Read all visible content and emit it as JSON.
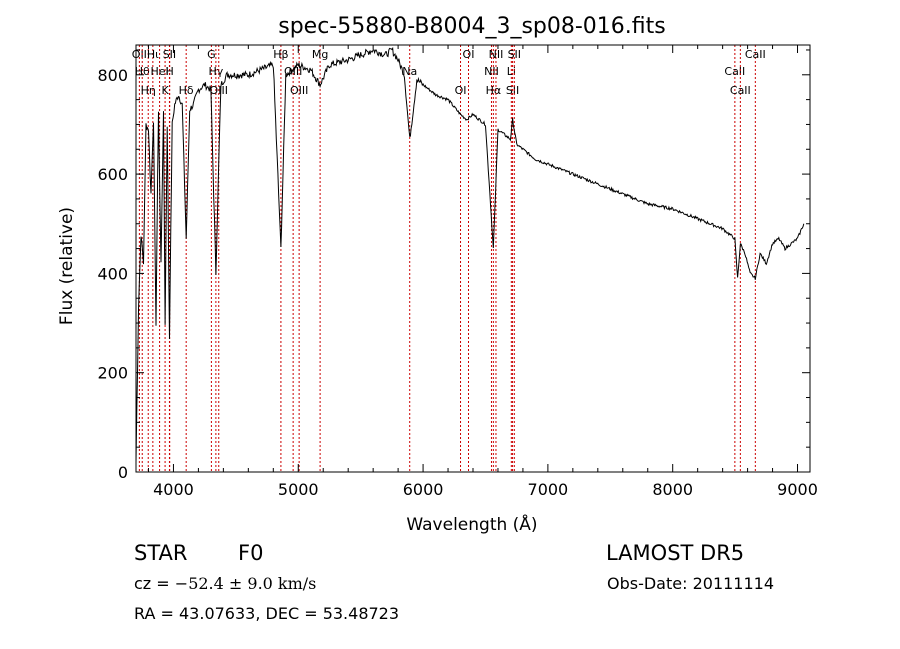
{
  "chart_data": {
    "type": "line",
    "title": "spec-55880-B8004_3_sp08-016.fits",
    "xlabel": "Wavelength (Å)",
    "ylabel": "Flux (relative)",
    "xlim": [
      3700,
      9100
    ],
    "ylim": [
      0,
      860
    ],
    "x_ticks": [
      4000,
      5000,
      6000,
      7000,
      8000,
      9000
    ],
    "y_ticks": [
      0,
      200,
      400,
      600,
      800
    ],
    "x_tick_labels": [
      "4000",
      "5000",
      "6000",
      "7000",
      "8000",
      "9000"
    ],
    "y_tick_labels": [
      "0",
      "200",
      "400",
      "600",
      "800"
    ],
    "grid": false,
    "series": [
      {
        "x": [
          3700,
          3720,
          3740,
          3760,
          3780,
          3800,
          3820,
          3840,
          3860,
          3880,
          3900,
          3920,
          3933,
          3950,
          3968,
          3990,
          4010,
          4040,
          4070,
          4102,
          4130,
          4160,
          4200,
          4250,
          4300,
          4340,
          4380,
          4430,
          4500,
          4600,
          4700,
          4800,
          4861,
          4900,
          5000,
          5100,
          5175,
          5250,
          5400,
          5500,
          5600,
          5700,
          5750,
          5800,
          5850,
          5893,
          5950,
          6000,
          6100,
          6200,
          6300,
          6350,
          6400,
          6500,
          6563,
          6600,
          6700,
          6717,
          6750,
          6800,
          6900,
          7000,
          7200,
          7400,
          7600,
          7800,
          8000,
          8200,
          8400,
          8498,
          8520,
          8542,
          8580,
          8620,
          8662,
          8700,
          8750,
          8800,
          8850,
          8900,
          8950,
          9000,
          9050
        ],
        "values": [
          20,
          330,
          480,
          420,
          700,
          690,
          560,
          710,
          300,
          730,
          420,
          720,
          300,
          700,
          270,
          700,
          740,
          760,
          740,
          470,
          730,
          740,
          770,
          780,
          770,
          400,
          780,
          800,
          800,
          800,
          810,
          820,
          450,
          800,
          820,
          810,
          780,
          820,
          830,
          840,
          850,
          840,
          850,
          830,
          800,
          670,
          790,
          780,
          760,
          750,
          720,
          710,
          720,
          700,
          450,
          690,
          670,
          710,
          660,
          650,
          630,
          620,
          600,
          580,
          560,
          540,
          530,
          510,
          490,
          470,
          390,
          460,
          440,
          400,
          390,
          440,
          420,
          460,
          470,
          450,
          460,
          470,
          500
        ]
      }
    ],
    "lines": [
      {
        "x": 3727,
        "label": "OII"
      },
      {
        "x": 3750,
        "label": "Hθ"
      },
      {
        "x": 3798,
        "label": "Hη"
      },
      {
        "x": 3835,
        "label": "Hι"
      },
      {
        "x": 3889,
        "label": "HeI"
      },
      {
        "x": 3933,
        "label": "K"
      },
      {
        "x": 3968,
        "label": "SII"
      },
      {
        "x": 3970,
        "label": "H"
      },
      {
        "x": 4102,
        "label": "Hδ"
      },
      {
        "x": 4304,
        "label": "G"
      },
      {
        "x": 4340,
        "label": "Hγ"
      },
      {
        "x": 4363,
        "label": "OIII"
      },
      {
        "x": 4861,
        "label": "Hβ"
      },
      {
        "x": 4959,
        "label": "OIII"
      },
      {
        "x": 5007,
        "label": "OIII"
      },
      {
        "x": 5175,
        "label": "Mg"
      },
      {
        "x": 5893,
        "label": "Na"
      },
      {
        "x": 6300,
        "label": "OI"
      },
      {
        "x": 6364,
        "label": "OI"
      },
      {
        "x": 6548,
        "label": "NII"
      },
      {
        "x": 6563,
        "label": "Hα"
      },
      {
        "x": 6584,
        "label": "NII"
      },
      {
        "x": 6707,
        "label": "Li"
      },
      {
        "x": 6717,
        "label": "SII"
      },
      {
        "x": 6731,
        "label": "SII"
      },
      {
        "x": 8498,
        "label": "CaII"
      },
      {
        "x": 8542,
        "label": "CaII"
      },
      {
        "x": 8662,
        "label": "CaII"
      }
    ],
    "line_color": "#cc0000"
  },
  "info": {
    "class": "STAR",
    "subclass": "F0",
    "survey": "LAMOST DR5",
    "cz_prefix": "cz = ",
    "cz_value": "−52.4 ± 9.0 km/s",
    "obs_date": "Obs-Date: 20111114",
    "radec": "RA =  43.07633, DEC =  53.48723"
  }
}
